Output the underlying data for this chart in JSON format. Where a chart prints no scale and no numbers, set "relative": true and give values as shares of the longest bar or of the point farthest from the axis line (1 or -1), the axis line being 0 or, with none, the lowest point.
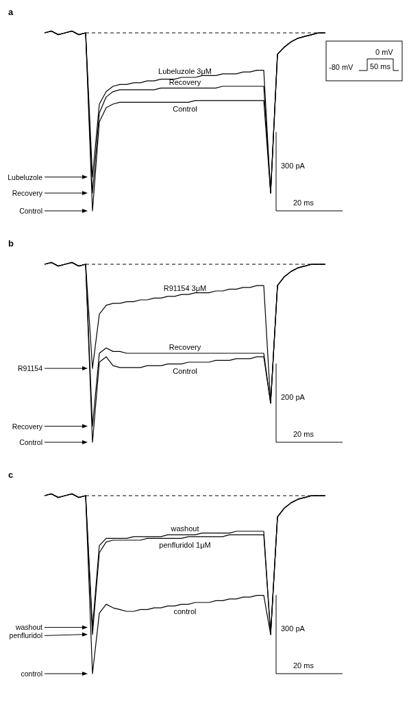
{
  "chart_data": [
    {
      "type": "line",
      "title": "a",
      "relative": true,
      "categories": [
        null,
        null,
        null,
        null,
        null,
        null,
        null,
        null,
        null,
        null,
        null,
        null,
        null,
        null,
        null,
        null,
        null,
        null,
        null,
        null,
        null,
        null,
        null,
        null,
        null,
        null,
        null,
        null,
        null,
        null,
        null,
        null,
        null,
        null,
        null,
        null,
        null,
        null,
        null,
        null,
        null,
        null
      ],
      "series": [
        {
          "name": "Lubeluzole 3μM",
          "color": "#000000",
          "values": [
            0,
            0.01,
            -0.01,
            0,
            0.01,
            -0.01,
            0,
            -0.81,
            -0.4,
            -0.33,
            -0.3,
            -0.29,
            -0.29,
            -0.28,
            -0.28,
            -0.27,
            -0.27,
            -0.26,
            -0.26,
            -0.26,
            -0.25,
            -0.25,
            -0.25,
            -0.24,
            -0.24,
            -0.24,
            -0.23,
            -0.23,
            -0.23,
            -0.22,
            -0.22,
            -0.21,
            -0.21,
            -0.9,
            -0.12,
            -0.08,
            -0.05,
            -0.03,
            -0.02,
            -0.01,
            0,
            0
          ]
        },
        {
          "name": "Recovery",
          "color": "#000000",
          "values": [
            0,
            0.01,
            -0.01,
            0,
            0.01,
            -0.01,
            0,
            -0.9,
            -0.45,
            -0.36,
            -0.33,
            -0.32,
            -0.32,
            -0.32,
            -0.32,
            -0.32,
            -0.32,
            -0.31,
            -0.31,
            -0.31,
            -0.31,
            -0.31,
            -0.31,
            -0.31,
            -0.31,
            -0.31,
            -0.3,
            -0.3,
            -0.3,
            -0.3,
            -0.3,
            -0.3,
            -0.3,
            -0.9,
            -0.12,
            -0.08,
            -0.05,
            -0.03,
            -0.02,
            -0.01,
            0,
            0
          ]
        },
        {
          "name": "Control",
          "color": "#000000",
          "values": [
            0,
            0.01,
            -0.01,
            0,
            0.01,
            -0.01,
            0,
            -1,
            -0.5,
            -0.42,
            -0.4,
            -0.39,
            -0.39,
            -0.39,
            -0.39,
            -0.39,
            -0.39,
            -0.39,
            -0.39,
            -0.39,
            -0.39,
            -0.39,
            -0.38,
            -0.38,
            -0.38,
            -0.38,
            -0.38,
            -0.38,
            -0.38,
            -0.38,
            -0.38,
            -0.38,
            -0.38,
            -0.9,
            -0.12,
            -0.08,
            -0.05,
            -0.03,
            -0.02,
            -0.01,
            0,
            0
          ]
        }
      ],
      "ref_lines": [
        {
          "axis": "y",
          "value": 0,
          "line_style": "dashed"
        }
      ],
      "annotations": [
        "300 pA",
        "20 ms",
        "0 mV",
        "-80 mV",
        "50 ms",
        "Lubeluzole",
        "Recovery",
        "Control"
      ]
    },
    {
      "type": "line",
      "title": "b",
      "relative": true,
      "categories": [
        null,
        null,
        null,
        null,
        null,
        null,
        null,
        null,
        null,
        null,
        null,
        null,
        null,
        null,
        null,
        null,
        null,
        null,
        null,
        null,
        null,
        null,
        null,
        null,
        null,
        null,
        null,
        null,
        null,
        null,
        null,
        null,
        null,
        null,
        null,
        null,
        null,
        null,
        null,
        null,
        null,
        null
      ],
      "series": [
        {
          "name": "R91154 3μM",
          "color": "#000000",
          "values": [
            0,
            0.01,
            -0.01,
            0,
            0.01,
            -0.01,
            0,
            -0.585,
            -0.28,
            -0.23,
            -0.22,
            -0.22,
            -0.21,
            -0.21,
            -0.2,
            -0.2,
            -0.19,
            -0.19,
            -0.18,
            -0.18,
            -0.17,
            -0.17,
            -0.16,
            -0.16,
            -0.16,
            -0.15,
            -0.15,
            -0.14,
            -0.14,
            -0.13,
            -0.13,
            -0.12,
            -0.12,
            -0.78,
            -0.12,
            -0.07,
            -0.04,
            -0.02,
            -0.01,
            0,
            0,
            0
          ]
        },
        {
          "name": "Recovery",
          "color": "#000000",
          "values": [
            0,
            0.01,
            -0.01,
            0,
            0.01,
            -0.01,
            0,
            -0.91,
            -0.5,
            -0.47,
            -0.49,
            -0.49,
            -0.5,
            -0.5,
            -0.5,
            -0.5,
            -0.5,
            -0.5,
            -0.5,
            -0.5,
            -0.5,
            -0.5,
            -0.5,
            -0.5,
            -0.5,
            -0.5,
            -0.5,
            -0.5,
            -0.5,
            -0.5,
            -0.5,
            -0.5,
            -0.5,
            -0.78,
            -0.12,
            -0.07,
            -0.04,
            -0.02,
            -0.01,
            0,
            0,
            0
          ]
        },
        {
          "name": "Control",
          "color": "#000000",
          "values": [
            0,
            0.01,
            -0.01,
            0,
            0.01,
            -0.01,
            0,
            -1,
            -0.55,
            -0.52,
            -0.57,
            -0.58,
            -0.58,
            -0.58,
            -0.58,
            -0.57,
            -0.57,
            -0.57,
            -0.56,
            -0.56,
            -0.56,
            -0.55,
            -0.55,
            -0.55,
            -0.55,
            -0.54,
            -0.54,
            -0.54,
            -0.53,
            -0.53,
            -0.53,
            -0.52,
            -0.52,
            -0.78,
            -0.12,
            -0.07,
            -0.04,
            -0.02,
            -0.01,
            0,
            0,
            0
          ]
        }
      ],
      "ref_lines": [
        {
          "axis": "y",
          "value": 0,
          "line_style": "dashed"
        }
      ],
      "annotations": [
        "200 pA",
        "20 ms",
        "R91154",
        "Recovery",
        "Control"
      ]
    },
    {
      "type": "line",
      "title": "c",
      "relative": true,
      "categories": [
        null,
        null,
        null,
        null,
        null,
        null,
        null,
        null,
        null,
        null,
        null,
        null,
        null,
        null,
        null,
        null,
        null,
        null,
        null,
        null,
        null,
        null,
        null,
        null,
        null,
        null,
        null,
        null,
        null,
        null,
        null,
        null,
        null,
        null,
        null,
        null,
        null,
        null,
        null,
        null,
        null,
        null
      ],
      "series": [
        {
          "name": "washout",
          "color": "#000000",
          "values": [
            0,
            0.01,
            -0.01,
            0,
            0.01,
            -0.01,
            0,
            -0.74,
            -0.28,
            -0.24,
            -0.24,
            -0.24,
            -0.24,
            -0.23,
            -0.23,
            -0.23,
            -0.23,
            -0.23,
            -0.22,
            -0.22,
            -0.22,
            -0.22,
            -0.22,
            -0.21,
            -0.21,
            -0.21,
            -0.21,
            -0.21,
            -0.2,
            -0.2,
            -0.2,
            -0.2,
            -0.2,
            -0.78,
            -0.12,
            -0.07,
            -0.04,
            -0.02,
            -0.01,
            0,
            0,
            0
          ]
        },
        {
          "name": "penfluridol 1μM",
          "color": "#000000",
          "values": [
            0,
            0.01,
            -0.01,
            0,
            0.01,
            -0.01,
            0,
            -0.78,
            -0.32,
            -0.26,
            -0.25,
            -0.25,
            -0.25,
            -0.25,
            -0.25,
            -0.24,
            -0.24,
            -0.24,
            -0.24,
            -0.24,
            -0.24,
            -0.23,
            -0.23,
            -0.23,
            -0.23,
            -0.23,
            -0.23,
            -0.22,
            -0.22,
            -0.22,
            -0.22,
            -0.22,
            -0.22,
            -0.78,
            -0.12,
            -0.07,
            -0.04,
            -0.02,
            -0.01,
            0,
            0,
            0
          ]
        },
        {
          "name": "control",
          "color": "#000000",
          "values": [
            0,
            0.01,
            -0.01,
            0,
            0.01,
            -0.01,
            0,
            -1,
            -0.66,
            -0.61,
            -0.63,
            -0.64,
            -0.65,
            -0.65,
            -0.64,
            -0.64,
            -0.63,
            -0.63,
            -0.62,
            -0.62,
            -0.61,
            -0.61,
            -0.6,
            -0.6,
            -0.6,
            -0.59,
            -0.59,
            -0.58,
            -0.58,
            -0.57,
            -0.57,
            -0.56,
            -0.56,
            -0.78,
            -0.12,
            -0.07,
            -0.04,
            -0.02,
            -0.01,
            0,
            0,
            0
          ]
        }
      ],
      "ref_lines": [
        {
          "axis": "y",
          "value": 0,
          "line_style": "dashed"
        }
      ],
      "annotations": [
        "300 pA",
        "20 ms",
        "washout",
        "penfluridol",
        "control"
      ]
    }
  ]
}
